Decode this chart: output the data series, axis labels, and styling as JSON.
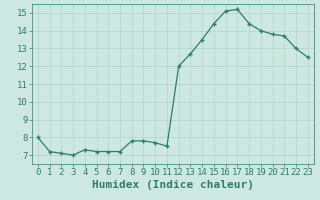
{
  "x": [
    0,
    1,
    2,
    3,
    4,
    5,
    6,
    7,
    8,
    9,
    10,
    11,
    12,
    13,
    14,
    15,
    16,
    17,
    18,
    19,
    20,
    21,
    22,
    23
  ],
  "y": [
    8.0,
    7.2,
    7.1,
    7.0,
    7.3,
    7.2,
    7.2,
    7.2,
    7.8,
    7.8,
    7.7,
    7.5,
    12.0,
    12.7,
    13.5,
    14.4,
    15.1,
    15.2,
    14.4,
    14.0,
    13.8,
    13.7,
    13.0,
    12.5
  ],
  "xlabel": "Humidex (Indice chaleur)",
  "xlim": [
    -0.5,
    23.5
  ],
  "ylim": [
    6.5,
    15.5
  ],
  "yticks": [
    7,
    8,
    9,
    10,
    11,
    12,
    13,
    14,
    15
  ],
  "xticks": [
    0,
    1,
    2,
    3,
    4,
    5,
    6,
    7,
    8,
    9,
    10,
    11,
    12,
    13,
    14,
    15,
    16,
    17,
    18,
    19,
    20,
    21,
    22,
    23
  ],
  "line_color": "#2e7d6e",
  "marker": "+",
  "bg_color": "#cce8e0",
  "grid_color": "#b0d4cc",
  "axis_color": "#2e7d6e",
  "tick_label_fontsize": 6.5,
  "xlabel_fontsize": 8.0
}
